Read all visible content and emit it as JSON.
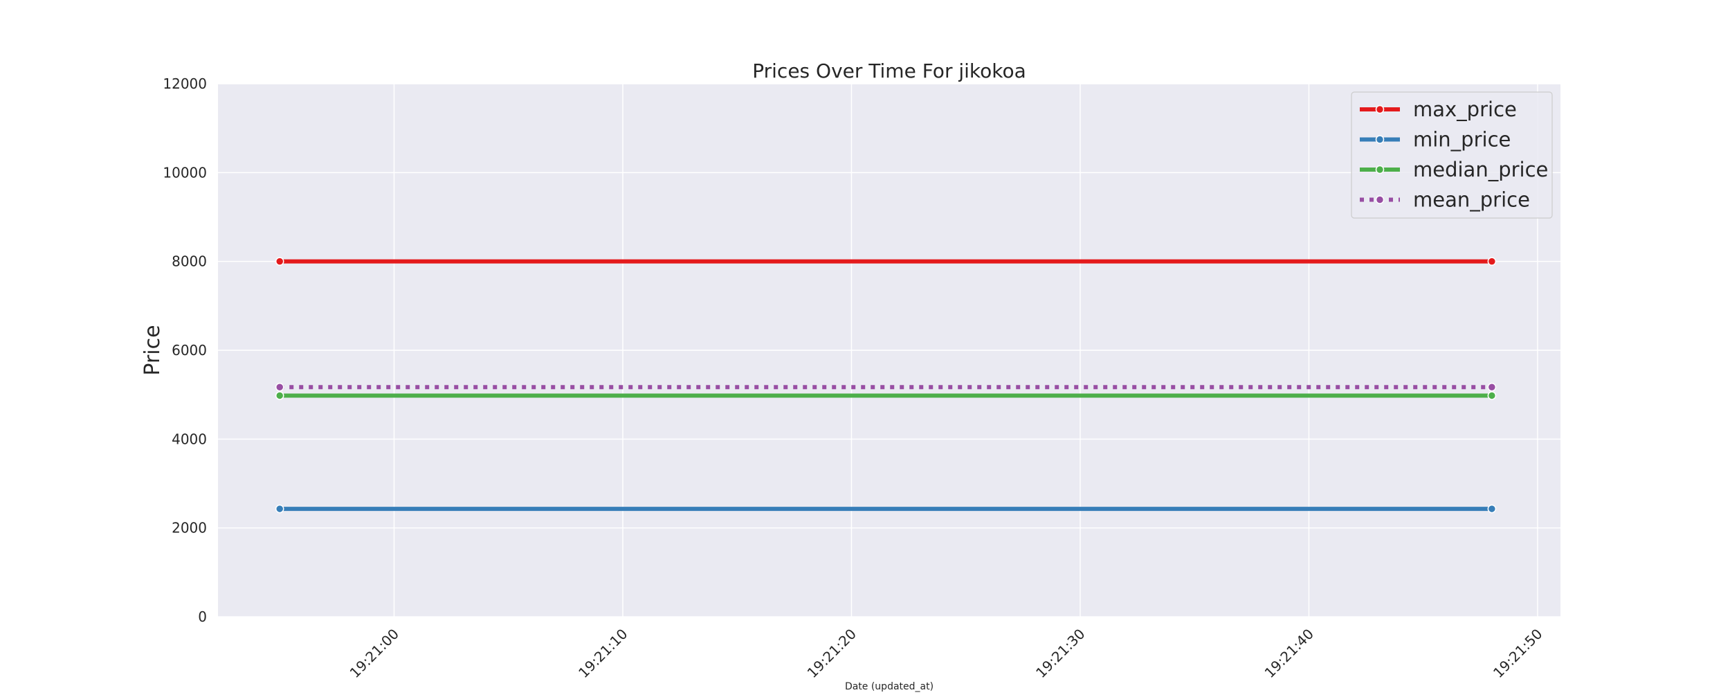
{
  "chart_data": {
    "type": "line",
    "title": "Prices Over Time For jikokoa",
    "xlabel": "Date (updated_at)",
    "ylabel": "Price",
    "ylim": [
      0,
      12000
    ],
    "yticks": [
      0,
      2000,
      4000,
      6000,
      8000,
      10000,
      12000
    ],
    "x_time_range": [
      "19:20:52.3",
      "19:21:51.0"
    ],
    "xticks": [
      "19:21:00",
      "19:21:10",
      "19:21:20",
      "19:21:30",
      "19:21:40",
      "19:21:50"
    ],
    "x": [
      "19:20:55",
      "19:21:48"
    ],
    "grid": true,
    "legend_position": "top-right",
    "series": [
      {
        "name": "max_price",
        "values": [
          8000,
          8000
        ],
        "color": "#e41a1c",
        "style": "solid"
      },
      {
        "name": "min_price",
        "values": [
          2430,
          2430
        ],
        "color": "#377eb8",
        "style": "solid"
      },
      {
        "name": "median_price",
        "values": [
          4980,
          4980
        ],
        "color": "#4daf4a",
        "style": "solid"
      },
      {
        "name": "mean_price",
        "values": [
          5170,
          5170
        ],
        "color": "#984ea3",
        "style": "dotted"
      }
    ]
  }
}
